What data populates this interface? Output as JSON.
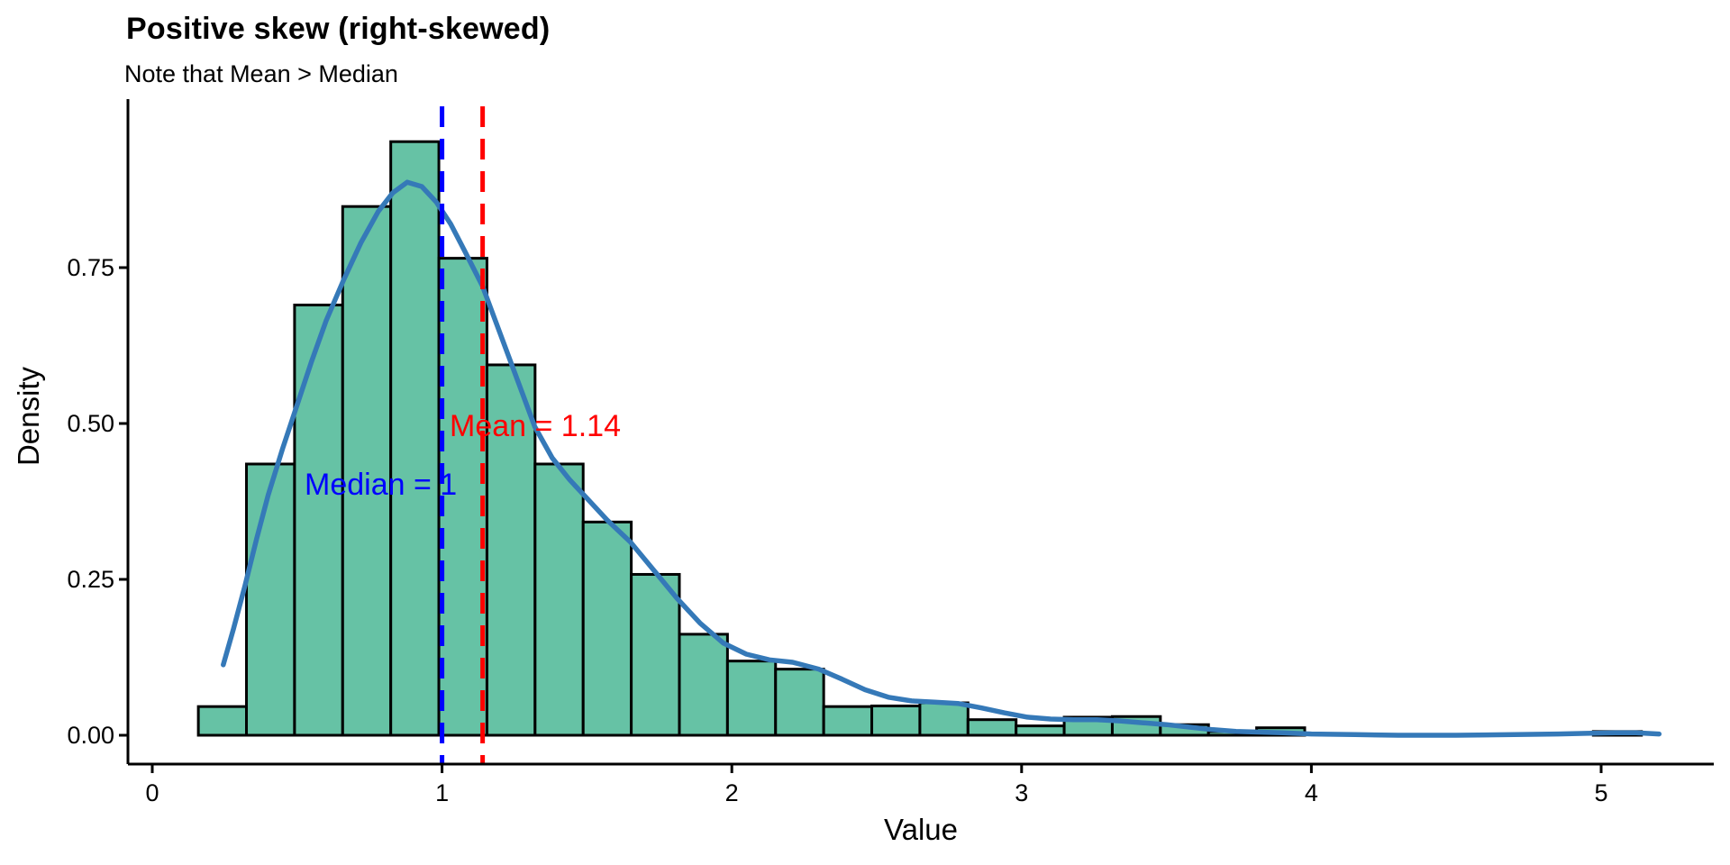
{
  "chart_data": {
    "type": "histogram_density",
    "title": "Positive skew (right-skewed)",
    "subtitle": "Note that Mean > Median",
    "xlabel": "Value",
    "ylabel": "Density",
    "x_ticks": [
      0,
      1,
      2,
      3,
      4,
      5
    ],
    "y_ticks": [
      {
        "value": 0.0,
        "label": "0.00"
      },
      {
        "value": 0.25,
        "label": "0.25"
      },
      {
        "value": 0.5,
        "label": "0.50"
      },
      {
        "value": 0.75,
        "label": "0.75"
      }
    ],
    "xlim": [
      -0.085,
      5.39
    ],
    "ylim": [
      0,
      1.02
    ],
    "grid": "off",
    "legend": "none",
    "histogram": {
      "bin_start": 0.159,
      "bin_width": 0.166,
      "densities": [
        0.046,
        0.435,
        0.69,
        0.848,
        0.952,
        0.765,
        0.594,
        0.435,
        0.342,
        0.258,
        0.162,
        0.119,
        0.106,
        0.046,
        0.047,
        0.052,
        0.025,
        0.015,
        0.029,
        0.03,
        0.017,
        0.006,
        0.012,
        0,
        0,
        0,
        0,
        0,
        0,
        0.006
      ]
    },
    "density_curve": {
      "points": [
        [
          0.245,
          0.113
        ],
        [
          0.28,
          0.17
        ],
        [
          0.32,
          0.24
        ],
        [
          0.36,
          0.315
        ],
        [
          0.4,
          0.385
        ],
        [
          0.45,
          0.46
        ],
        [
          0.5,
          0.53
        ],
        [
          0.55,
          0.6
        ],
        [
          0.6,
          0.665
        ],
        [
          0.66,
          0.73
        ],
        [
          0.72,
          0.79
        ],
        [
          0.78,
          0.84
        ],
        [
          0.83,
          0.87
        ],
        [
          0.88,
          0.887
        ],
        [
          0.93,
          0.88
        ],
        [
          0.98,
          0.855
        ],
        [
          1.03,
          0.82
        ],
        [
          1.08,
          0.775
        ],
        [
          1.14,
          0.72
        ],
        [
          1.2,
          0.645
        ],
        [
          1.26,
          0.57
        ],
        [
          1.32,
          0.495
        ],
        [
          1.38,
          0.445
        ],
        [
          1.44,
          0.41
        ],
        [
          1.5,
          0.38
        ],
        [
          1.57,
          0.345
        ],
        [
          1.65,
          0.31
        ],
        [
          1.73,
          0.265
        ],
        [
          1.81,
          0.22
        ],
        [
          1.89,
          0.18
        ],
        [
          1.97,
          0.148
        ],
        [
          2.05,
          0.13
        ],
        [
          2.13,
          0.121
        ],
        [
          2.21,
          0.117
        ],
        [
          2.3,
          0.106
        ],
        [
          2.38,
          0.09
        ],
        [
          2.46,
          0.073
        ],
        [
          2.54,
          0.061
        ],
        [
          2.62,
          0.055
        ],
        [
          2.7,
          0.053
        ],
        [
          2.78,
          0.051
        ],
        [
          2.86,
          0.044
        ],
        [
          2.94,
          0.036
        ],
        [
          3.02,
          0.029
        ],
        [
          3.1,
          0.026
        ],
        [
          3.18,
          0.025
        ],
        [
          3.26,
          0.025
        ],
        [
          3.34,
          0.023
        ],
        [
          3.42,
          0.02
        ],
        [
          3.5,
          0.017
        ],
        [
          3.58,
          0.013
        ],
        [
          3.66,
          0.009
        ],
        [
          3.74,
          0.006
        ],
        [
          3.82,
          0.005
        ],
        [
          3.9,
          0.004
        ],
        [
          4.0,
          0.002
        ],
        [
          4.15,
          0.001
        ],
        [
          4.3,
          0.0
        ],
        [
          4.5,
          0.0
        ],
        [
          4.7,
          0.001
        ],
        [
          4.85,
          0.002
        ],
        [
          4.95,
          0.003
        ],
        [
          5.05,
          0.004
        ],
        [
          5.12,
          0.004
        ],
        [
          5.2,
          0.002
        ]
      ]
    },
    "annotations": {
      "mean": {
        "value": 1.14,
        "label": "Mean = 1.14",
        "color": "#ff0000"
      },
      "median": {
        "value": 1.0,
        "label": "Median = 1",
        "color": "#0000ff"
      }
    },
    "colors": {
      "bar_fill": "#66c2a5",
      "bar_stroke": "#000000",
      "curve": "#3579b8",
      "axis": "#000000",
      "text": "#000000"
    }
  }
}
